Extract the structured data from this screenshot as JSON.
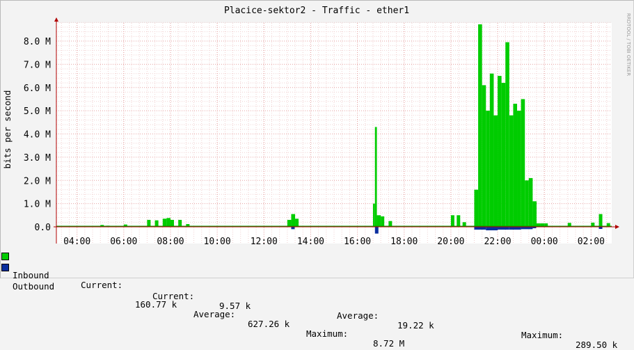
{
  "chart_data": {
    "type": "area",
    "title": "Placice-sektor2 - Traffic - ether1",
    "ylabel": "bits per second",
    "xlabel": "",
    "watermark": "RRDTOOL / TOBI OETIKER",
    "ylim": [
      0,
      8.8
    ],
    "y_unit": "M",
    "y_ticks": [
      "0.0",
      "1.0 M",
      "2.0 M",
      "3.0 M",
      "4.0 M",
      "5.0 M",
      "6.0 M",
      "7.0 M",
      "8.0 M"
    ],
    "y_tick_values": [
      0,
      1,
      2,
      3,
      4,
      5,
      6,
      7,
      8
    ],
    "x_start": "03:07",
    "x_end": "02:53",
    "x_ticks": [
      "04:00",
      "06:00",
      "08:00",
      "10:00",
      "12:00",
      "14:00",
      "16:00",
      "18:00",
      "20:00",
      "22:00",
      "00:00",
      "02:00"
    ],
    "x_tick_hours": [
      4,
      6,
      8,
      10,
      12,
      14,
      16,
      18,
      20,
      22,
      24,
      26
    ],
    "grid": true,
    "colors": {
      "inbound": "#00cc00",
      "inbound_line": "#009a00",
      "outbound": "#0a2e9e",
      "grid": "#e6a0a0",
      "axis": "#b00000"
    },
    "series": [
      {
        "name": "Inbound",
        "x": [
          "05:00",
          "05:15",
          "06:00",
          "07:00",
          "07:20",
          "07:40",
          "07:50",
          "08:00",
          "08:20",
          "08:40",
          "13:00",
          "13:10",
          "13:20",
          "16:40",
          "16:45",
          "16:50",
          "17:00",
          "17:20",
          "20:00",
          "20:15",
          "20:30",
          "21:00",
          "21:10",
          "21:20",
          "21:30",
          "21:40",
          "21:50",
          "22:00",
          "22:10",
          "22:20",
          "22:30",
          "22:40",
          "22:50",
          "23:00",
          "23:10",
          "23:20",
          "23:30",
          "23:40",
          "23:50",
          "00:00",
          "01:00",
          "02:00",
          "02:20",
          "02:40"
        ],
        "values": [
          0.08,
          0.05,
          0.1,
          0.3,
          0.28,
          0.35,
          0.38,
          0.3,
          0.3,
          0.12,
          0.3,
          0.55,
          0.35,
          1.0,
          4.3,
          0.5,
          0.45,
          0.25,
          0.5,
          0.5,
          0.2,
          1.6,
          8.72,
          6.1,
          5.0,
          6.6,
          4.8,
          6.5,
          6.2,
          7.95,
          4.8,
          5.3,
          5.0,
          5.5,
          2.0,
          2.1,
          1.1,
          0.15,
          0.15,
          0.15,
          0.17,
          0.18,
          0.55,
          0.16
        ]
      },
      {
        "name": "Outbound",
        "x": [
          "13:10",
          "16:45",
          "21:00",
          "21:30",
          "22:00",
          "22:30",
          "23:00",
          "23:30",
          "02:20"
        ],
        "values": [
          0.1,
          0.29,
          0.12,
          0.15,
          0.12,
          0.12,
          0.1,
          0.06,
          0.09
        ]
      }
    ],
    "legend": [
      {
        "name": "Inbound",
        "current_label": "Current:",
        "current": "160.77 k",
        "average_label": "Average:",
        "average": "627.26 k",
        "maximum_label": "Maximum:",
        "maximum": "8.72 M"
      },
      {
        "name": "Outbound",
        "current_label": "Current:",
        "current": "9.57 k",
        "average_label": "Average:",
        "average": "19.22 k",
        "maximum_label": "Maximum:",
        "maximum": "289.50 k"
      }
    ]
  }
}
